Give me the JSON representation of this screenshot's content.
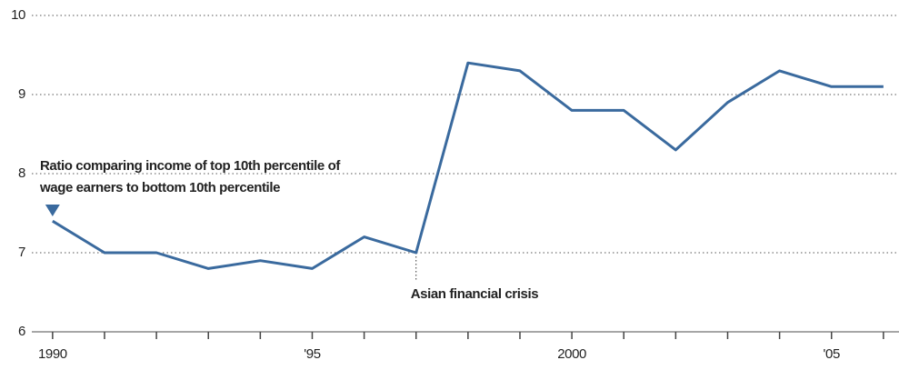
{
  "chart_data": {
    "type": "line",
    "x": [
      1990,
      1991,
      1992,
      1993,
      1994,
      1995,
      1996,
      1997,
      1998,
      1999,
      2000,
      2001,
      2002,
      2003,
      2004,
      2005,
      2006
    ],
    "series": [
      {
        "name": null,
        "color": "#3a6a9e",
        "values": [
          7.4,
          7.0,
          7.0,
          6.8,
          6.9,
          6.8,
          7.2,
          7.0,
          9.4,
          9.3,
          8.8,
          8.8,
          8.3,
          8.9,
          9.3,
          9.1,
          9.1
        ]
      }
    ],
    "xlim": [
      1989.6,
      2006.3
    ],
    "xticks": [
      {
        "value": 1990,
        "label": "1990"
      },
      {
        "value": 1995,
        "label": "'95"
      },
      2000,
      {
        "value": 2005,
        "label": "'05"
      }
    ],
    "xminor_ticks": [
      1991,
      1992,
      1993,
      1994,
      1996,
      1997,
      1998,
      1999,
      2001,
      2002,
      2003,
      2004,
      2006
    ],
    "ylim": [
      6,
      10
    ],
    "yticks": [
      6,
      7,
      8,
      9,
      10
    ],
    "grid": true,
    "annotations": [
      {
        "lines": [
          "Ratio comparing income of top 10th percentile of",
          "wage earners to bottom 10th percentile"
        ],
        "x": 1990
      },
      {
        "text": "Asian financial crisis",
        "x": 1997
      }
    ]
  }
}
